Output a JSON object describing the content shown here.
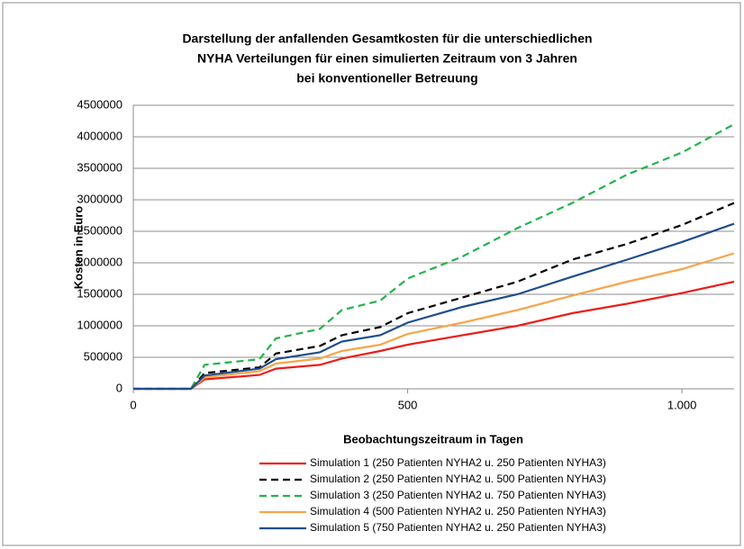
{
  "chart_data": {
    "type": "line",
    "title": [
      "Darstellung der anfallenden Gesamtkosten für die unterschiedlichen",
      "NYHA Verteilungen für einen simulierten Zeitraum von 3 Jahren",
      "bei konventioneller Betreuung"
    ],
    "x_label": "Beobachtungszeitraum in Tagen",
    "y_label": "Kosten in Euro",
    "x": [
      0,
      105,
      130,
      230,
      260,
      340,
      380,
      450,
      500,
      600,
      700,
      800,
      900,
      1000,
      1095
    ],
    "xlim": [
      0,
      1095
    ],
    "xticks": [
      0,
      500,
      {
        "value": 1000,
        "label": "1.000"
      }
    ],
    "ylim": [
      0,
      4500000
    ],
    "yticks": [
      0,
      500000,
      1000000,
      1500000,
      2000000,
      2500000,
      3000000,
      3500000,
      4000000,
      4500000
    ],
    "grid": true,
    "legend": "bottom",
    "series": [
      {
        "name": "Simulation 1 (250 Patienten NYHA2 u. 250 Patienten NYHA3)",
        "color": "#e8201c",
        "dashed": false,
        "values": [
          0,
          0,
          150000,
          220000,
          320000,
          380000,
          480000,
          600000,
          700000,
          850000,
          1000000,
          1200000,
          1350000,
          1520000,
          1700000
        ]
      },
      {
        "name": "Simulation 2 (250 Patienten NYHA2 u. 500 Patienten NYHA3)",
        "color": "#000000",
        "dashed": true,
        "values": [
          0,
          0,
          250000,
          340000,
          560000,
          680000,
          850000,
          980000,
          1200000,
          1450000,
          1700000,
          2050000,
          2300000,
          2600000,
          2950000
        ]
      },
      {
        "name": "Simulation 3 (250 Patienten NYHA2 u. 750 Patienten NYHA3)",
        "color": "#22b34a",
        "dashed": true,
        "values": [
          0,
          0,
          380000,
          470000,
          800000,
          950000,
          1250000,
          1400000,
          1750000,
          2100000,
          2550000,
          2950000,
          3400000,
          3750000,
          4200000
        ]
      },
      {
        "name": "Simulation 4 (500 Patienten NYHA2 u. 250 Patienten NYHA3)",
        "color": "#f7a54a",
        "dashed": false,
        "values": [
          0,
          0,
          180000,
          280000,
          400000,
          480000,
          600000,
          700000,
          870000,
          1050000,
          1250000,
          1480000,
          1700000,
          1900000,
          2150000
        ]
      },
      {
        "name": "Simulation 5 (750 Patienten NYHA2 u. 250 Patienten NYHA3)",
        "color": "#1f4e8c",
        "dashed": false,
        "values": [
          0,
          0,
          210000,
          320000,
          470000,
          580000,
          750000,
          850000,
          1050000,
          1300000,
          1500000,
          1780000,
          2050000,
          2330000,
          2620000
        ]
      }
    ]
  }
}
